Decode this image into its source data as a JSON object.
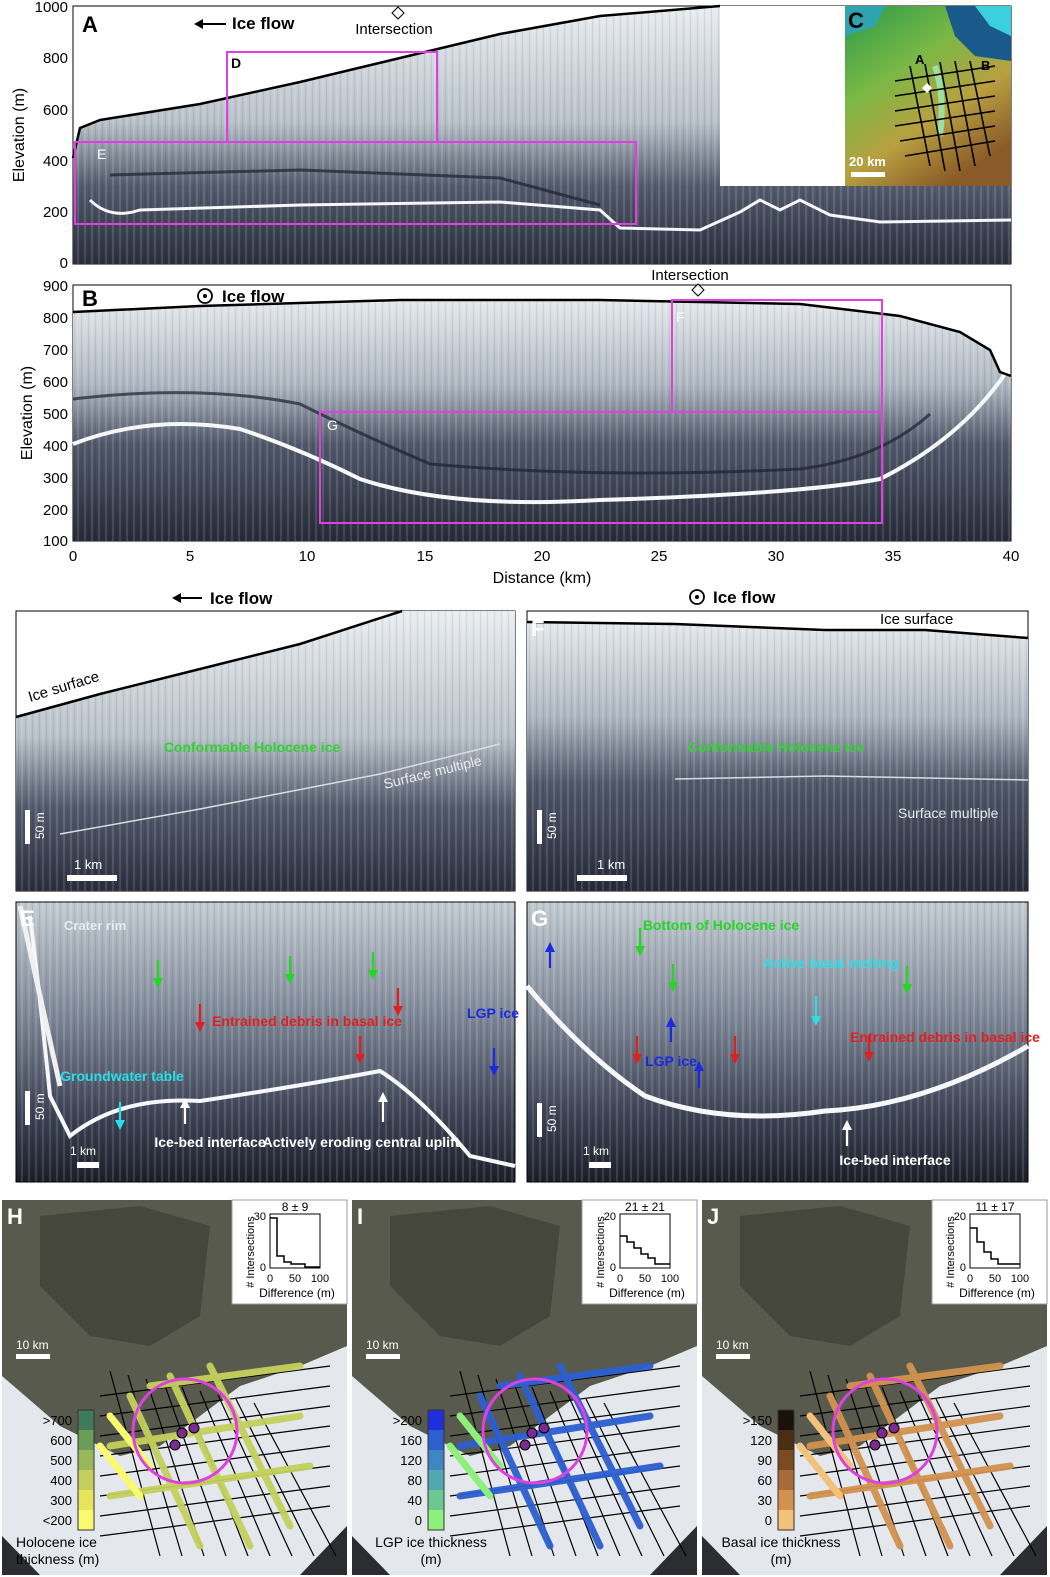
{
  "panels": {
    "A": {
      "letter": "A",
      "flow_label": "Ice flow",
      "intersection_label": "Intersection",
      "box_D": "D",
      "box_E": "E",
      "ylabel": "Elevation (m)",
      "yticks": [
        "1000",
        "800",
        "600",
        "400",
        "200",
        "0"
      ]
    },
    "B": {
      "letter": "B",
      "flow_label": "Ice flow",
      "intersection_label": "Intersection",
      "box_F": "F",
      "box_G": "G",
      "ylabel": "Elevation (m)",
      "yticks": [
        "900",
        "800",
        "700",
        "600",
        "500",
        "400",
        "300",
        "200",
        "100"
      ],
      "xticks": [
        "0",
        "5",
        "10",
        "15",
        "20",
        "25",
        "30",
        "35",
        "40"
      ],
      "xlabel": "Distance (km)"
    },
    "C": {
      "letter": "C",
      "label_A": "A",
      "label_B": "B",
      "scale": "20 km"
    },
    "D": {
      "letter": "D",
      "flow_label": "Ice flow",
      "surface": "Ice surface",
      "holocene": "Conformable Holocene ice",
      "multiple": "Surface multiple",
      "vscale": "50 m",
      "hscale": "1 km"
    },
    "F": {
      "letter": "F",
      "flow_label": "Ice flow",
      "surface": "Ice surface",
      "holocene": "Conformable Holocene ice",
      "multiple": "Surface multiple",
      "vscale": "50 m",
      "hscale": "1 km"
    },
    "E": {
      "letter": "E",
      "crater": "Crater rim",
      "debris": "Entrained debris in basal ice",
      "lgp": "LGP ice",
      "groundwater": "Groundwater table",
      "icebed": "Ice-bed interface",
      "uplift": "Actively eroding central uplift",
      "vscale": "50 m",
      "hscale": "1 km"
    },
    "G": {
      "letter": "G",
      "holocene_bottom": "Bottom of Holocene ice",
      "melting": "Active basal melting",
      "lgp": "LGP ice",
      "debris": "Entrained debris in basal ice",
      "icebed": "Ice-bed interface",
      "vscale": "50 m",
      "hscale": "1 km"
    },
    "H": {
      "letter": "H",
      "scale": "10 km",
      "stat": "8 ± 9",
      "inset_ylabel": "# Intersections",
      "inset_xlabel": "Difference (m)",
      "inset_yticks": [
        "30",
        "0"
      ],
      "inset_xticks": [
        "0",
        "50",
        "100"
      ],
      "legend_ticks": [
        ">700",
        "600",
        "500",
        "400",
        "300",
        "<200"
      ],
      "legend_title": "Holocene ice thickness (m)",
      "colors": [
        "#3f7a5a",
        "#6a9c5a",
        "#98b85a",
        "#c5d05c",
        "#e6e35c",
        "#fafa6e"
      ]
    },
    "I": {
      "letter": "I",
      "scale": "10 km",
      "stat": "21 ± 21",
      "inset_ylabel": "# Intersections",
      "inset_xlabel": "Difference (m)",
      "inset_yticks": [
        "20",
        "0"
      ],
      "inset_xticks": [
        "0",
        "50",
        "100"
      ],
      "legend_ticks": [
        ">200",
        "160",
        "120",
        "80",
        "40",
        "0"
      ],
      "legend_title": "LGP ice thickness (m)",
      "colors": [
        "#1f2fe0",
        "#2c5fd0",
        "#3f86c4",
        "#52a8b0",
        "#6bc892",
        "#8ef07c"
      ]
    },
    "J": {
      "letter": "J",
      "scale": "10 km",
      "stat": "11 ± 17",
      "inset_ylabel": "# Intersections",
      "inset_xlabel": "Difference (m)",
      "inset_yticks": [
        "20",
        "0"
      ],
      "inset_xticks": [
        "0",
        "50",
        "100"
      ],
      "legend_ticks": [
        ">150",
        "120",
        "90",
        "60",
        "30",
        "0"
      ],
      "legend_title": "Basal ice thickness (m)",
      "colors": [
        "#1a1208",
        "#4a2e14",
        "#7a4a22",
        "#a86a36",
        "#d2924e",
        "#f2c27a"
      ]
    }
  }
}
